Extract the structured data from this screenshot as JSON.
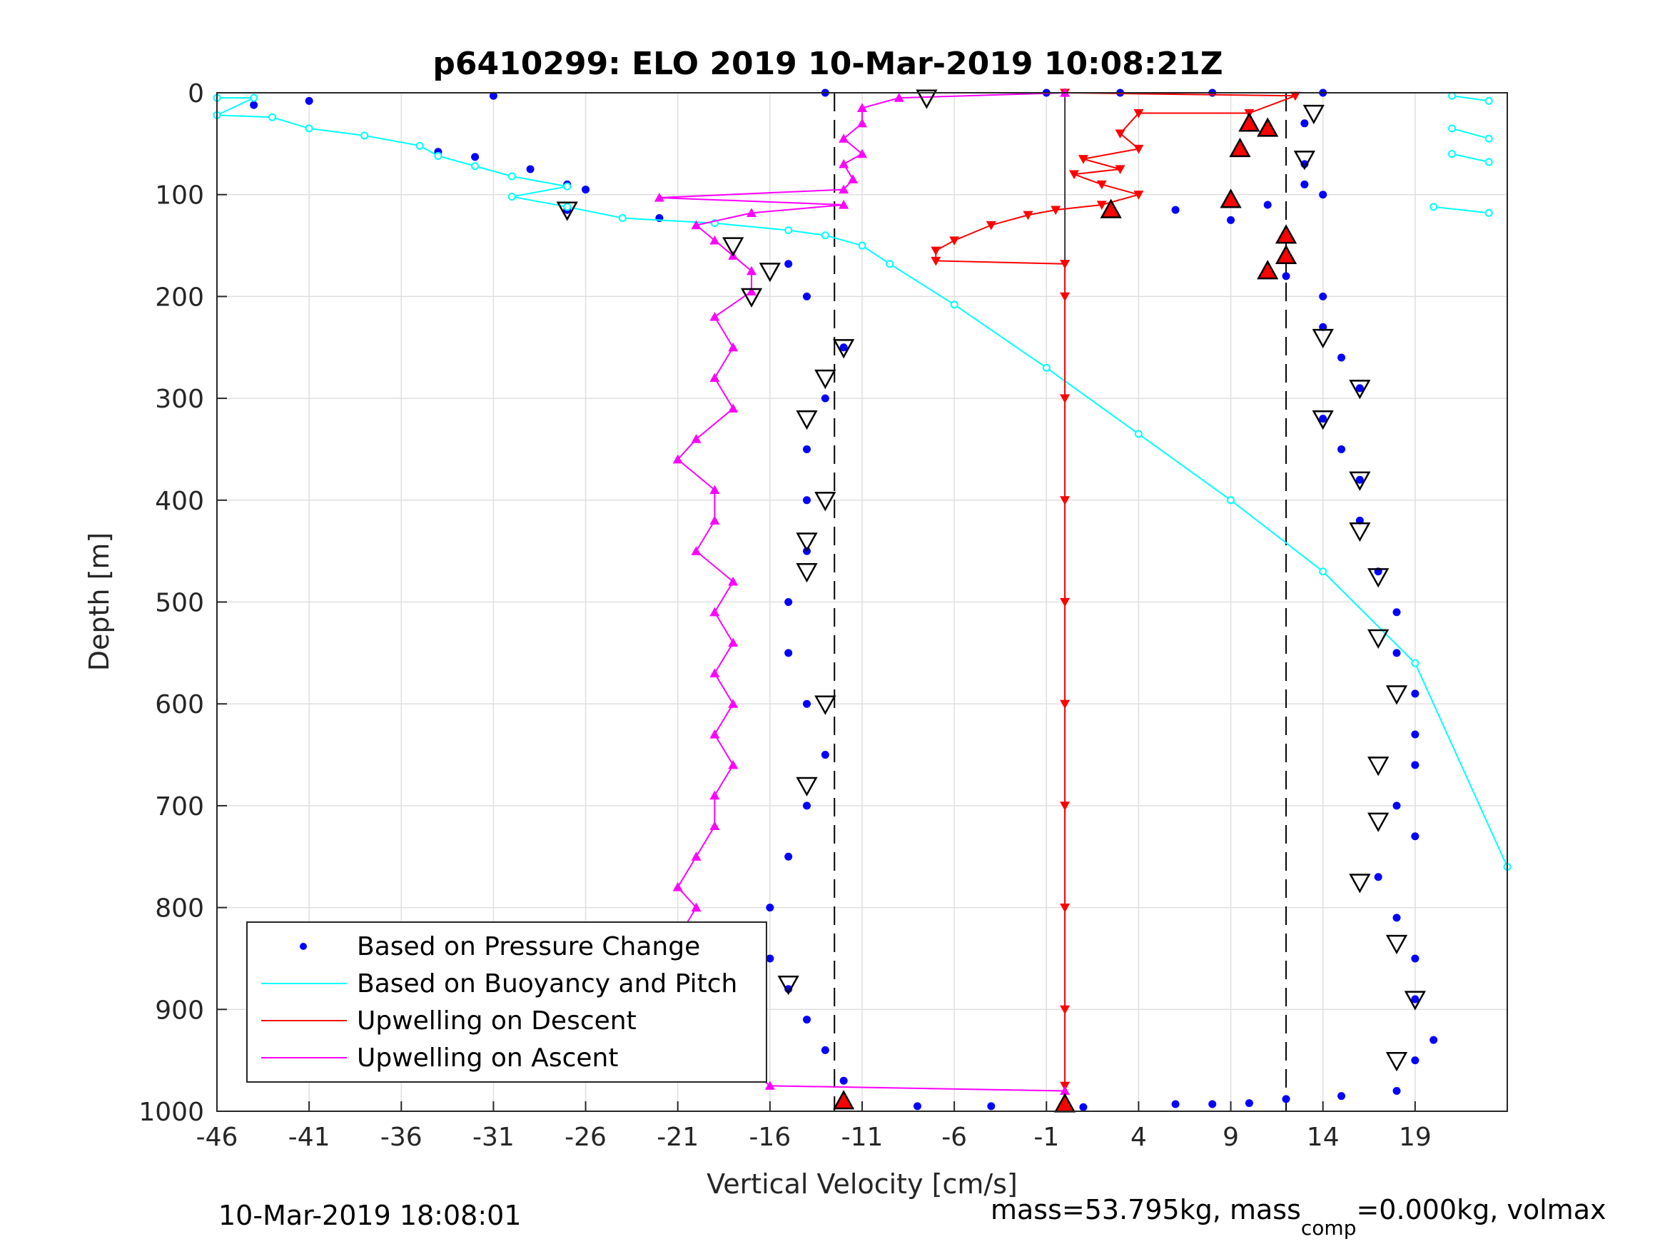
{
  "chart_data": {
    "type": "scatter",
    "title": "p6410299: ELO 2019 10-Mar-2019 10:08:21Z",
    "xlabel": "Vertical Velocity [cm/s]",
    "ylabel": "Depth [m]",
    "xlim": [
      -46,
      24
    ],
    "ylim": [
      0,
      1000
    ],
    "y_reversed": true,
    "xticks": [
      -46,
      -41,
      -36,
      -31,
      -26,
      -21,
      -16,
      -11,
      -6,
      -1,
      4,
      9,
      14,
      19
    ],
    "yticks": [
      0,
      100,
      200,
      300,
      400,
      500,
      600,
      700,
      800,
      900,
      1000
    ],
    "grid": true,
    "legend_position": "bottom-left",
    "reference_lines": {
      "dashed_x": [
        -12.5,
        12
      ],
      "solid_x": [
        0
      ]
    },
    "series": [
      {
        "name": "Based on Pressure Change",
        "color": "#0000ff",
        "marker": "dot",
        "points": [
          [
            -13,
            0
          ],
          [
            -31,
            3
          ],
          [
            -41,
            8
          ],
          [
            -44,
            12
          ],
          [
            -34,
            58
          ],
          [
            -32,
            63
          ],
          [
            -29,
            75
          ],
          [
            -27,
            90
          ],
          [
            -26,
            95
          ],
          [
            -27,
            115
          ],
          [
            -22,
            123
          ],
          [
            -15,
            168
          ],
          [
            -14,
            200
          ],
          [
            -12,
            250
          ],
          [
            -13,
            300
          ],
          [
            -14,
            350
          ],
          [
            -14,
            400
          ],
          [
            -14,
            450
          ],
          [
            -15,
            500
          ],
          [
            -15,
            550
          ],
          [
            -14,
            600
          ],
          [
            -13,
            650
          ],
          [
            -14,
            700
          ],
          [
            -15,
            750
          ],
          [
            -16,
            800
          ],
          [
            -16,
            850
          ],
          [
            -15,
            880
          ],
          [
            -14,
            910
          ],
          [
            -13,
            940
          ],
          [
            -12,
            970
          ],
          [
            -12,
            990
          ],
          [
            -8,
            995
          ],
          [
            -4,
            995
          ],
          [
            1,
            996
          ],
          [
            6,
            993
          ],
          [
            8,
            993
          ],
          [
            10,
            992
          ],
          [
            12,
            988
          ],
          [
            15,
            985
          ],
          [
            -1,
            0
          ],
          [
            3,
            0
          ],
          [
            8,
            0
          ],
          [
            14,
            0
          ],
          [
            13,
            30
          ],
          [
            13,
            70
          ],
          [
            14,
            100
          ],
          [
            13,
            90
          ],
          [
            11,
            110
          ],
          [
            6,
            115
          ],
          [
            9,
            125
          ],
          [
            12,
            140
          ],
          [
            12,
            160
          ],
          [
            12,
            180
          ],
          [
            14,
            200
          ],
          [
            14,
            230
          ],
          [
            15,
            260
          ],
          [
            16,
            290
          ],
          [
            14,
            320
          ],
          [
            15,
            350
          ],
          [
            16,
            380
          ],
          [
            16,
            420
          ],
          [
            17,
            470
          ],
          [
            18,
            510
          ],
          [
            18,
            550
          ],
          [
            19,
            590
          ],
          [
            19,
            630
          ],
          [
            19,
            660
          ],
          [
            18,
            700
          ],
          [
            19,
            730
          ],
          [
            17,
            770
          ],
          [
            18,
            810
          ],
          [
            19,
            850
          ],
          [
            19,
            890
          ],
          [
            20,
            930
          ],
          [
            19,
            950
          ],
          [
            18,
            980
          ]
        ]
      },
      {
        "name": "Based on Buoyancy and Pitch",
        "color": "#00ffff",
        "marker": "line",
        "points": [
          [
            -46,
            5
          ],
          [
            -44,
            5
          ],
          [
            -46,
            22
          ],
          [
            -43,
            24
          ],
          [
            -41,
            35
          ],
          [
            -38,
            42
          ],
          [
            -35,
            52
          ],
          [
            -34,
            62
          ],
          [
            -32,
            72
          ],
          [
            -30,
            82
          ],
          [
            -27,
            92
          ],
          [
            -30,
            102
          ],
          [
            -27,
            112
          ],
          [
            -24,
            123
          ],
          [
            -19,
            128
          ],
          [
            -15,
            135
          ],
          [
            -13,
            140
          ],
          [
            -11,
            150
          ],
          [
            -9.5,
            168
          ],
          [
            -6,
            208
          ],
          [
            -1,
            270
          ],
          [
            4,
            335
          ],
          [
            9,
            400
          ],
          [
            14,
            470
          ],
          [
            19,
            560
          ],
          [
            24,
            760
          ]
        ],
        "near_surface_right": [
          [
            21,
            3
          ],
          [
            23,
            8
          ],
          [
            21,
            35
          ],
          [
            23,
            45
          ],
          [
            21,
            60
          ],
          [
            23,
            68
          ],
          [
            20,
            112
          ],
          [
            23,
            118
          ]
        ]
      },
      {
        "name": "Upwelling on Descent",
        "color": "#ff0000",
        "marker": "triangle-down",
        "points": [
          [
            0,
            0
          ],
          [
            12.5,
            3
          ],
          [
            10,
            20
          ],
          [
            4,
            20
          ],
          [
            3,
            40
          ],
          [
            4,
            55
          ],
          [
            1,
            65
          ],
          [
            3,
            75
          ],
          [
            0.5,
            80
          ],
          [
            2,
            90
          ],
          [
            4,
            100
          ],
          [
            2,
            110
          ],
          [
            -0.5,
            115
          ],
          [
            -2,
            120
          ],
          [
            -4,
            130
          ],
          [
            -6,
            145
          ],
          [
            -7,
            155
          ],
          [
            -7,
            165
          ],
          [
            0,
            168
          ],
          [
            0,
            200
          ],
          [
            0,
            300
          ],
          [
            0,
            400
          ],
          [
            0,
            500
          ],
          [
            0,
            600
          ],
          [
            0,
            700
          ],
          [
            0,
            800
          ],
          [
            0,
            900
          ],
          [
            0,
            975
          ]
        ]
      },
      {
        "name": "Upwelling on Ascent",
        "color": "#ff00ff",
        "marker": "triangle-up",
        "points": [
          [
            0,
            0
          ],
          [
            -9,
            5
          ],
          [
            -11,
            15
          ],
          [
            -11,
            30
          ],
          [
            -12,
            45
          ],
          [
            -11,
            60
          ],
          [
            -12,
            70
          ],
          [
            -11.5,
            85
          ],
          [
            -12,
            95
          ],
          [
            -22,
            103
          ],
          [
            -12,
            110
          ],
          [
            -17,
            118
          ],
          [
            -20,
            130
          ],
          [
            -19,
            145
          ],
          [
            -18,
            160
          ],
          [
            -17,
            175
          ],
          [
            -17,
            195
          ],
          [
            -19,
            220
          ],
          [
            -18,
            250
          ],
          [
            -19,
            280
          ],
          [
            -18,
            310
          ],
          [
            -20,
            340
          ],
          [
            -21,
            360
          ],
          [
            -19,
            390
          ],
          [
            -19,
            420
          ],
          [
            -20,
            450
          ],
          [
            -18,
            480
          ],
          [
            -19,
            510
          ],
          [
            -18,
            540
          ],
          [
            -19,
            570
          ],
          [
            -18,
            600
          ],
          [
            -19,
            630
          ],
          [
            -18,
            660
          ],
          [
            -19,
            690
          ],
          [
            -19,
            720
          ],
          [
            -20,
            750
          ],
          [
            -21,
            780
          ],
          [
            -20,
            800
          ],
          [
            -21,
            830
          ],
          [
            -19,
            860
          ],
          [
            -18,
            890
          ],
          [
            -17,
            920
          ],
          [
            -19,
            945
          ],
          [
            -17,
            960
          ],
          [
            -16,
            975
          ],
          [
            0,
            980
          ]
        ]
      }
    ],
    "markers": {
      "red_filled_triangles": [
        [
          -12,
          990
        ],
        [
          0,
          993
        ],
        [
          10,
          30
        ],
        [
          11,
          35
        ],
        [
          9.5,
          55
        ],
        [
          9,
          105
        ],
        [
          2.5,
          115
        ],
        [
          12,
          140
        ],
        [
          12,
          160
        ],
        [
          11,
          175
        ]
      ],
      "black_open_triangles": [
        [
          -7.5,
          5
        ],
        [
          13.5,
          20
        ],
        [
          13,
          65
        ],
        [
          -27,
          115
        ],
        [
          -18,
          150
        ],
        [
          -16,
          175
        ],
        [
          -17,
          200
        ],
        [
          -12,
          250
        ],
        [
          -13,
          280
        ],
        [
          -14,
          320
        ],
        [
          -13,
          400
        ],
        [
          -14,
          440
        ],
        [
          -14,
          470
        ],
        [
          -13,
          600
        ],
        [
          -14,
          680
        ],
        [
          -15,
          875
        ],
        [
          14,
          240
        ],
        [
          16,
          290
        ],
        [
          14,
          320
        ],
        [
          16,
          380
        ],
        [
          16,
          430
        ],
        [
          17,
          475
        ],
        [
          17,
          535
        ],
        [
          18,
          590
        ],
        [
          17,
          660
        ],
        [
          17,
          715
        ],
        [
          16,
          775
        ],
        [
          18,
          835
        ],
        [
          19,
          890
        ],
        [
          18,
          950
        ]
      ]
    }
  },
  "footer": {
    "timestamp": "10-Mar-2019 18:08:01",
    "mass_prefix": "mass=53.795kg, mass",
    "mass_sub": "comp",
    "mass_suffix": "=0.000kg, volmax"
  }
}
